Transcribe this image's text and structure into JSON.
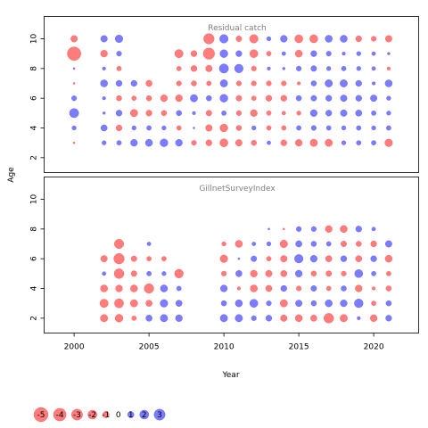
{
  "chart_data": {
    "type": "scatter",
    "xlabel": "Year",
    "ylabel": "Age",
    "xlim": [
      1998,
      2023
    ],
    "ylim": [
      1,
      11.5
    ],
    "x_ticks": [
      2000,
      2005,
      2010,
      2015,
      2020
    ],
    "y_ticks": [
      2,
      4,
      6,
      8,
      10
    ],
    "colors": {
      "negative": "#ff5050",
      "positive": "#5050ff"
    },
    "legend": {
      "labels": [
        "-5",
        "-4",
        "-3",
        "-2",
        "-1",
        "0",
        "1",
        "2",
        "3"
      ],
      "values": [
        -5,
        -4,
        -3,
        -2,
        -1,
        0,
        1,
        2,
        3
      ]
    },
    "panels": [
      {
        "title": "Residual catch",
        "ages": [
          3,
          4,
          5,
          6,
          7,
          8,
          9,
          10
        ],
        "years": [
          2000,
          2002,
          2003,
          2004,
          2005,
          2006,
          2007,
          2008,
          2009,
          2010,
          2011,
          2012,
          2013,
          2014,
          2015,
          2016,
          2017,
          2018,
          2019,
          2020,
          2021
        ],
        "residuals": {
          "10": [
            -1.2,
            1.2,
            1.6,
            null,
            null,
            null,
            null,
            null,
            -3.0,
            2.0,
            -0.9,
            -2.0,
            0.5,
            1.3,
            -1.8,
            -1.8,
            1.4,
            1.4,
            -1.0,
            -0.7,
            -1.2
          ],
          "9": [
            -5.0,
            -1.3,
            0.7,
            null,
            null,
            null,
            -1.9,
            -1.0,
            -3.5,
            1.7,
            1.0,
            -1.8,
            -0.6,
            0.4,
            -1.4,
            1.0,
            0.7,
            0.3,
            0.5,
            0.4,
            0.2
          ],
          "8": [
            0.1,
            0.3,
            -0.6,
            null,
            null,
            null,
            -0.6,
            -1.0,
            -1.2,
            2.3,
            2.0,
            -0.7,
            0.3,
            0.2,
            0.7,
            0.9,
            0.5,
            0.6,
            0.5,
            0.4,
            -0.3
          ],
          "7": [
            -0.1,
            1.4,
            1.0,
            1.0,
            -1.1,
            null,
            -0.7,
            -0.8,
            -0.6,
            1.5,
            -0.7,
            -0.7,
            -0.7,
            -0.7,
            -0.3,
            0.8,
            1.5,
            1.5,
            1.0,
            0.3,
            1.4
          ],
          "6": [
            0.7,
            0.3,
            -0.8,
            -0.6,
            -0.8,
            -1.3,
            -1.3,
            1.5,
            0.8,
            1.7,
            -0.9,
            -0.6,
            -1.0,
            -1.0,
            0.8,
            0.9,
            1.0,
            1.2,
            1.0,
            1.2,
            0.5
          ],
          "5": [
            2.3,
            0.2,
            1.0,
            -1.5,
            -1.0,
            -0.8,
            0.8,
            0.3,
            -0.9,
            0.6,
            -0.7,
            -1.3,
            -0.6,
            -0.4,
            -0.5,
            1.3,
            1.0,
            1.2,
            1.1,
            0.6,
            0.5
          ],
          "4": [
            0.5,
            1.1,
            -1.0,
            0.5,
            0.6,
            0.5,
            -0.6,
            0.1,
            -1.2,
            -1.7,
            -0.8,
            0.5,
            -0.6,
            -0.6,
            0.6,
            0.7,
            0.6,
            0.5,
            0.6,
            0.5,
            0.6
          ],
          "3": [
            -0.1,
            0.5,
            0.6,
            1.3,
            1.4,
            1.7,
            1.3,
            -0.7,
            -1.0,
            -1.8,
            -1.2,
            -0.8,
            0.4,
            -1.0,
            -1.3,
            -1.5,
            -1.5,
            0.5,
            0.6,
            0.6,
            -1.6
          ]
        }
      },
      {
        "title": "GillnetSurveyIndex",
        "ages": [
          2,
          3,
          4,
          5,
          6,
          7,
          8
        ],
        "years": [
          2002,
          2003,
          2004,
          2005,
          2006,
          2007,
          2010,
          2011,
          2012,
          2013,
          2014,
          2015,
          2016,
          2017,
          2018,
          2019,
          2020,
          2021
        ],
        "residuals": {
          "8": [
            null,
            null,
            null,
            null,
            null,
            null,
            null,
            null,
            null,
            0.1,
            -0.1,
            0.7,
            0.7,
            -1.3,
            -1.4,
            1.0,
            0.4,
            null
          ],
          "7": [
            null,
            -2.4,
            null,
            0.4,
            null,
            null,
            -0.5,
            -1.4,
            0.4,
            0.5,
            -1.6,
            1.1,
            0.8,
            0.6,
            -0.9,
            -0.8,
            -1.0,
            1.2
          ],
          "6": [
            -1.2,
            -3.0,
            -0.9,
            -0.6,
            -0.6,
            null,
            -1.6,
            0.1,
            0.9,
            -0.6,
            -1.2,
            2.0,
            1.3,
            -1.1,
            1.0,
            -1.1,
            1.0,
            -1.4
          ],
          "5": [
            0.4,
            -2.6,
            -0.9,
            0.6,
            0.5,
            -2.1,
            -0.7,
            1.1,
            -1.3,
            -1.2,
            -1.1,
            1.3,
            -0.8,
            -0.9,
            -0.7,
            1.8,
            0.6,
            -0.6
          ],
          "4": [
            -1.4,
            -1.3,
            -1.4,
            -2.5,
            1.4,
            0.6,
            1.3,
            -0.3,
            -1.4,
            -1.1,
            1.0,
            -0.7,
            0.9,
            -0.6,
            0.8,
            -1.3,
            -0.3,
            -0.8
          ],
          "3": [
            -1.9,
            -2.3,
            -1.5,
            -1.1,
            1.6,
            1.1,
            0.8,
            1.4,
            1.8,
            0.7,
            -1.5,
            1.2,
            0.8,
            1.4,
            1.3,
            2.1,
            -0.6,
            0.8
          ],
          "2": [
            -1.5,
            -1.7,
            -0.6,
            1.1,
            1.5,
            1.3,
            1.5,
            1.5,
            0.7,
            1.0,
            -1.2,
            -1.4,
            -1.1,
            -2.6,
            -1.5,
            0.3,
            -1.3,
            1.0
          ]
        }
      }
    ]
  }
}
